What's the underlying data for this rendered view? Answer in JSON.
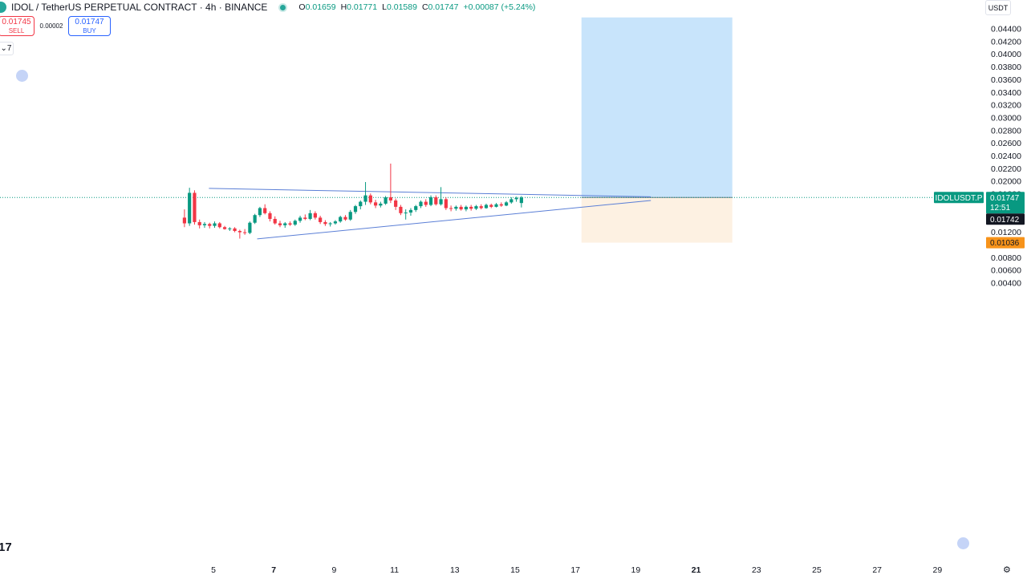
{
  "header": {
    "title": "IDOL / TetherUS PERPETUAL CONTRACT · 4h · BINANCE",
    "open_label": "O",
    "open": "0.01659",
    "high_label": "H",
    "high": "0.01771",
    "low_label": "L",
    "low": "0.01589",
    "close_label": "C",
    "close": "0.01747",
    "change": "+0.00087 (+5.24%)"
  },
  "trade": {
    "sell_price": "0.01745",
    "sell_label": "SELL",
    "spread": "0.00002",
    "buy_price": "0.01747",
    "buy_label": "BUY",
    "collapse_label": "7"
  },
  "currency": "USDT",
  "logo_text": "17",
  "colors": {
    "up": "#089981",
    "down": "#f23645",
    "trendline": "#5b7fd6",
    "profit_zone": "#c8e4fb",
    "loss_zone": "#fdf1e2",
    "price_tag": "#089981",
    "stop_tag": "#f7931a"
  },
  "chart_data": {
    "type": "candlestick",
    "timeframe": "4h",
    "ylim": [
      0.0036,
      0.0458
    ],
    "y_ticks": [
      "0.04400",
      "0.04200",
      "0.04000",
      "0.03800",
      "0.03600",
      "0.03400",
      "0.03200",
      "0.03000",
      "0.02800",
      "0.02600",
      "0.02400",
      "0.02200",
      "0.02000",
      "0.01800",
      "0.01600",
      "0.01400",
      "0.01200",
      "0.01000",
      "0.00800",
      "0.00600",
      "0.00400"
    ],
    "x_day_range": [
      4.55,
      30.2
    ],
    "x_ticks": [
      {
        "day": 5,
        "label": "5",
        "bold": false
      },
      {
        "day": 7,
        "label": "7",
        "bold": true
      },
      {
        "day": 9,
        "label": "9",
        "bold": false
      },
      {
        "day": 11,
        "label": "11",
        "bold": false
      },
      {
        "day": 13,
        "label": "13",
        "bold": false
      },
      {
        "day": 15,
        "label": "15",
        "bold": false
      },
      {
        "day": 17,
        "label": "17",
        "bold": false
      },
      {
        "day": 19,
        "label": "19",
        "bold": false
      },
      {
        "day": 21,
        "label": "21",
        "bold": true
      },
      {
        "day": 23,
        "label": "23",
        "bold": false
      },
      {
        "day": 25,
        "label": "25",
        "bold": false
      },
      {
        "day": 27,
        "label": "27",
        "bold": false
      },
      {
        "day": 29,
        "label": "29",
        "bold": false
      }
    ],
    "first_candle_day": 4.04,
    "candle_interval_days": 0.1667,
    "candles": [
      [
        0.0143,
        0.0156,
        0.0128,
        0.0134
      ],
      [
        0.0134,
        0.019,
        0.013,
        0.0182
      ],
      [
        0.0182,
        0.0186,
        0.0132,
        0.0136
      ],
      [
        0.0136,
        0.014,
        0.0126,
        0.0131
      ],
      [
        0.0131,
        0.0136,
        0.0127,
        0.0133
      ],
      [
        0.0133,
        0.0135,
        0.0126,
        0.013
      ],
      [
        0.013,
        0.0137,
        0.0127,
        0.0134
      ],
      [
        0.0134,
        0.0136,
        0.0126,
        0.0128
      ],
      [
        0.0128,
        0.013,
        0.0124,
        0.0125
      ],
      [
        0.0125,
        0.0128,
        0.0122,
        0.0126
      ],
      [
        0.0126,
        0.0128,
        0.012,
        0.0122
      ],
      [
        0.0122,
        0.0124,
        0.011,
        0.012
      ],
      [
        0.012,
        0.0125,
        0.0116,
        0.0119
      ],
      [
        0.0119,
        0.0137,
        0.0117,
        0.0135
      ],
      [
        0.0135,
        0.0149,
        0.0133,
        0.0147
      ],
      [
        0.0147,
        0.016,
        0.0144,
        0.0158
      ],
      [
        0.0158,
        0.0164,
        0.0148,
        0.015
      ],
      [
        0.015,
        0.0153,
        0.0137,
        0.0141
      ],
      [
        0.0141,
        0.0145,
        0.0132,
        0.0134
      ],
      [
        0.0134,
        0.0138,
        0.0128,
        0.0131
      ],
      [
        0.0131,
        0.0136,
        0.0127,
        0.0134
      ],
      [
        0.0134,
        0.0137,
        0.013,
        0.0132
      ],
      [
        0.0132,
        0.014,
        0.013,
        0.0138
      ],
      [
        0.0138,
        0.0146,
        0.0135,
        0.0143
      ],
      [
        0.0143,
        0.0148,
        0.0139,
        0.0141
      ],
      [
        0.0141,
        0.0155,
        0.0139,
        0.015
      ],
      [
        0.015,
        0.0153,
        0.014,
        0.0143
      ],
      [
        0.0143,
        0.0146,
        0.0133,
        0.0136
      ],
      [
        0.0136,
        0.0139,
        0.013,
        0.0133
      ],
      [
        0.0133,
        0.0136,
        0.0129,
        0.0134
      ],
      [
        0.0134,
        0.0139,
        0.0132,
        0.0137
      ],
      [
        0.0137,
        0.0146,
        0.0135,
        0.0144
      ],
      [
        0.0144,
        0.0147,
        0.0138,
        0.014
      ],
      [
        0.014,
        0.0155,
        0.0138,
        0.0152
      ],
      [
        0.0152,
        0.0163,
        0.0149,
        0.0161
      ],
      [
        0.0161,
        0.017,
        0.0156,
        0.0168
      ],
      [
        0.0168,
        0.0199,
        0.0163,
        0.0178
      ],
      [
        0.0178,
        0.0181,
        0.0164,
        0.0167
      ],
      [
        0.0167,
        0.0171,
        0.0158,
        0.0162
      ],
      [
        0.0162,
        0.0168,
        0.0159,
        0.0165
      ],
      [
        0.0165,
        0.0177,
        0.0163,
        0.0175
      ],
      [
        0.0175,
        0.0228,
        0.0166,
        0.017
      ],
      [
        0.017,
        0.0173,
        0.0155,
        0.016
      ],
      [
        0.016,
        0.0163,
        0.0147,
        0.015
      ],
      [
        0.015,
        0.0156,
        0.014,
        0.0151
      ],
      [
        0.0151,
        0.0158,
        0.0146,
        0.0155
      ],
      [
        0.0155,
        0.0163,
        0.0152,
        0.0161
      ],
      [
        0.0161,
        0.017,
        0.0158,
        0.0168
      ],
      [
        0.0168,
        0.0172,
        0.016,
        0.0163
      ],
      [
        0.0163,
        0.0178,
        0.0161,
        0.0175
      ],
      [
        0.0175,
        0.0178,
        0.0162,
        0.0164
      ],
      [
        0.0164,
        0.0191,
        0.0162,
        0.0172
      ],
      [
        0.0172,
        0.0175,
        0.0155,
        0.0158
      ],
      [
        0.0158,
        0.0162,
        0.0153,
        0.0157
      ],
      [
        0.0157,
        0.0162,
        0.0154,
        0.016
      ],
      [
        0.016,
        0.0163,
        0.0154,
        0.0156
      ],
      [
        0.0156,
        0.0162,
        0.0153,
        0.016
      ],
      [
        0.016,
        0.0163,
        0.0154,
        0.0157
      ],
      [
        0.0157,
        0.0163,
        0.0155,
        0.0161
      ],
      [
        0.0161,
        0.0164,
        0.0156,
        0.0158
      ],
      [
        0.0158,
        0.0165,
        0.0157,
        0.0163
      ],
      [
        0.0163,
        0.0165,
        0.0158,
        0.016
      ],
      [
        0.016,
        0.0166,
        0.0159,
        0.0164
      ],
      [
        0.0164,
        0.0167,
        0.016,
        0.0162
      ],
      [
        0.0162,
        0.0169,
        0.0161,
        0.0167
      ],
      [
        0.0167,
        0.0175,
        0.0165,
        0.0172
      ],
      [
        0.0172,
        0.0176,
        0.0168,
        0.0174
      ],
      [
        0.0166,
        0.0177,
        0.0159,
        0.01747
      ]
    ],
    "trendlines": [
      {
        "name": "upper",
        "from": [
          4.85,
          0.0189
        ],
        "to": [
          19.5,
          0.01758
        ]
      },
      {
        "name": "lower",
        "from": [
          6.45,
          0.01095
        ],
        "to": [
          19.5,
          0.017
        ]
      }
    ],
    "position_tool": {
      "from_day": 17.2,
      "to_day": 22.2,
      "entry": 0.01747,
      "target": 0.0458,
      "stop": 0.01036
    },
    "price_labels": {
      "symbol": "IDOLUSDT.P",
      "last": "0.01747",
      "countdown": "12:51",
      "bid": "0.01742",
      "stop": "0.01036"
    }
  }
}
